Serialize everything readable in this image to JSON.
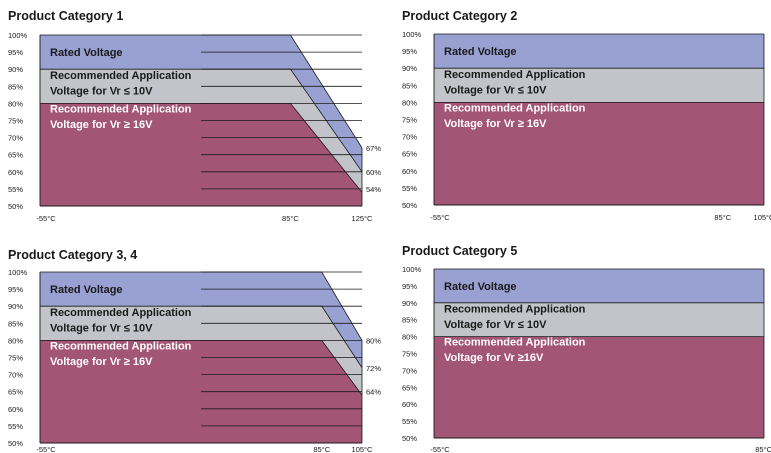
{
  "colors": {
    "rated": "#99A0D2",
    "application_10v": "#C2C4C9",
    "application_16v": "#A35576",
    "grid": "#1a1a1a"
  },
  "chart_data": [
    {
      "type": "area",
      "title": "Product Category 1",
      "x_tick_labels": [
        "-55°C",
        "85°C",
        "125°C"
      ],
      "x": [
        -55,
        85,
        125
      ],
      "ylim": [
        50,
        100
      ],
      "y_tick_labels": [
        "50%",
        "55%",
        "60%",
        "65%",
        "70%",
        "75%",
        "80%",
        "85%",
        "90%",
        "95%",
        "100%"
      ],
      "grid": "horizontal",
      "series": [
        {
          "name": "Rated Voltage",
          "values": [
            100,
            100,
            67
          ]
        },
        {
          "name": "Recommended Application Voltage for Vr ≤ 10V",
          "values": [
            90,
            90,
            60
          ]
        },
        {
          "name": "Recommended Application Voltage for Vr ≥ 16V",
          "values": [
            80,
            80,
            54
          ]
        }
      ],
      "end_labels": [
        "67%",
        "60%",
        "54%"
      ]
    },
    {
      "type": "area",
      "title": "Product Category 2",
      "x_tick_labels": [
        "-55°C",
        "85°C",
        "105°C"
      ],
      "x": [
        -55,
        85,
        105
      ],
      "ylim": [
        50,
        100
      ],
      "y_tick_labels": [
        "50%",
        "55%",
        "60%",
        "65%",
        "70%",
        "75%",
        "80%",
        "85%",
        "90%",
        "95%",
        "100%"
      ],
      "grid": "none",
      "series": [
        {
          "name": "Rated Voltage",
          "values": [
            100,
            100,
            100
          ]
        },
        {
          "name": "Recommended Application Voltage for Vr ≤ 10V",
          "values": [
            90,
            90,
            90
          ]
        },
        {
          "name": "Recommended Application Voltage for Vr ≥ 16V",
          "values": [
            80,
            80,
            80
          ]
        }
      ],
      "end_labels": []
    },
    {
      "type": "area",
      "title": "Product Category 3, 4",
      "x_tick_labels": [
        "-55°C",
        "85°C",
        "105°C"
      ],
      "x": [
        -55,
        85,
        105
      ],
      "ylim": [
        50,
        100
      ],
      "y_tick_labels": [
        "50%",
        "55%",
        "60%",
        "65%",
        "70%",
        "75%",
        "80%",
        "85%",
        "90%",
        "95%",
        "100%"
      ],
      "grid": "horizontal",
      "series": [
        {
          "name": "Rated Voltage",
          "values": [
            100,
            100,
            80
          ]
        },
        {
          "name": "Recommended Application Voltage for Vr ≤ 10V",
          "values": [
            90,
            90,
            72
          ]
        },
        {
          "name": "Recommended Application Voltage for Vr ≥ 16V",
          "values": [
            80,
            80,
            64
          ]
        }
      ],
      "end_labels": [
        "80%",
        "72%",
        "64%"
      ]
    },
    {
      "type": "area",
      "title": "Product Category 5",
      "x_tick_labels": [
        "-55°C",
        "85°C"
      ],
      "x": [
        -55,
        85
      ],
      "ylim": [
        50,
        100
      ],
      "y_tick_labels": [
        "50%",
        "55%",
        "60%",
        "65%",
        "70%",
        "75%",
        "80%",
        "85%",
        "90%",
        "95%",
        "100%"
      ],
      "grid": "none",
      "series": [
        {
          "name": "Rated Voltage",
          "values": [
            100,
            100
          ]
        },
        {
          "name": "Recommended Application Voltage for Vr ≤ 10V",
          "values": [
            90,
            90
          ]
        },
        {
          "name": "Recommended Application Voltage for Vr ≥16V",
          "values": [
            80,
            80
          ]
        }
      ],
      "end_labels": []
    }
  ],
  "labels": [
    {
      "rated": "Rated Voltage",
      "app10_l1": "Recommended Application",
      "app10_l2": "Voltage for Vr ≤ 10V",
      "app16_l1": "Recommended Application",
      "app16_l2": "Voltage for Vr ≥ 16V"
    },
    {
      "rated": "Rated Voltage",
      "app10_l1": "Recommended Application",
      "app10_l2": "Voltage for Vr ≤ 10V",
      "app16_l1": "Recommended Application",
      "app16_l2": "Voltage for Vr ≥ 16V"
    },
    {
      "rated": "Rated Voltage",
      "app10_l1": "Recommended Application",
      "app10_l2": "Voltage for Vr ≤ 10V",
      "app16_l1": "Recommended Application",
      "app16_l2": "Voltage for Vr ≥ 16V"
    },
    {
      "rated": "Rated Voltage",
      "app10_l1": "Recommended Application",
      "app10_l2": "Voltage for Vr ≤ 10V",
      "app16_l1": "Recommended Application",
      "app16_l2": "Voltage for Vr ≥16V"
    }
  ]
}
